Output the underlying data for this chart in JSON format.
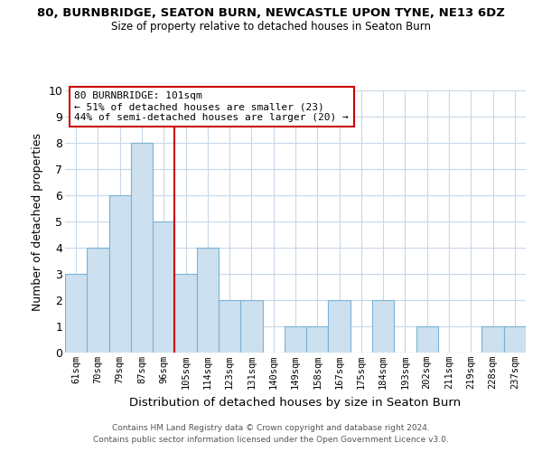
{
  "title": "80, BURNBRIDGE, SEATON BURN, NEWCASTLE UPON TYNE, NE13 6DZ",
  "subtitle": "Size of property relative to detached houses in Seaton Burn",
  "xlabel": "Distribution of detached houses by size in Seaton Burn",
  "ylabel": "Number of detached properties",
  "bin_labels": [
    "61sqm",
    "70sqm",
    "79sqm",
    "87sqm",
    "96sqm",
    "105sqm",
    "114sqm",
    "123sqm",
    "131sqm",
    "140sqm",
    "149sqm",
    "158sqm",
    "167sqm",
    "175sqm",
    "184sqm",
    "193sqm",
    "202sqm",
    "211sqm",
    "219sqm",
    "228sqm",
    "237sqm"
  ],
  "bar_heights": [
    3,
    4,
    6,
    8,
    5,
    3,
    4,
    2,
    2,
    0,
    1,
    1,
    2,
    0,
    2,
    0,
    1,
    0,
    0,
    1,
    1
  ],
  "bar_color": "#cce0f0",
  "bar_edge_color": "#7ab3d4",
  "grid_color": "#c8d8e8",
  "vline_x_index": 4.5,
  "vline_color": "#cc0000",
  "annotation_text": "80 BURNBRIDGE: 101sqm\n← 51% of detached houses are smaller (23)\n44% of semi-detached houses are larger (20) →",
  "annotation_box_color": "#cc0000",
  "ylim": [
    0,
    10
  ],
  "yticks": [
    0,
    1,
    2,
    3,
    4,
    5,
    6,
    7,
    8,
    9,
    10
  ],
  "footer_line1": "Contains HM Land Registry data © Crown copyright and database right 2024.",
  "footer_line2": "Contains public sector information licensed under the Open Government Licence v3.0."
}
